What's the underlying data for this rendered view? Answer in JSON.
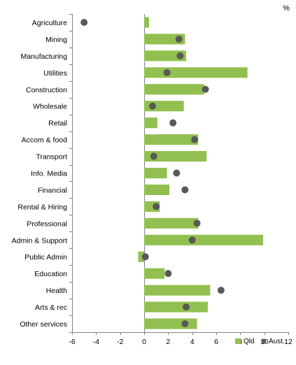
{
  "chart_data": {
    "type": "bar",
    "orientation": "horizontal",
    "unit_label": "%",
    "categories": [
      "Agriculture",
      "Mining",
      "Manufacturing",
      "Utilities",
      "Construction",
      "Wholesale",
      "Retail",
      "Accom & food",
      "Transport",
      "Info. Media",
      "Financial",
      "Rental & Hiring",
      "Professional",
      "Admin & Support",
      "Public Admin",
      "Education",
      "Health",
      "Arts & rec",
      "Other services"
    ],
    "series": [
      {
        "name": "Qld",
        "type": "bar",
        "color": "#92c050",
        "values": [
          0.4,
          3.4,
          3.5,
          8.6,
          5.0,
          3.3,
          1.1,
          4.5,
          5.2,
          1.9,
          2.1,
          1.3,
          4.5,
          9.9,
          -0.5,
          1.7,
          5.5,
          5.3,
          4.4
        ]
      },
      {
        "name": "Aust.",
        "type": "marker",
        "color": "#595959",
        "values": [
          -5.0,
          2.9,
          3.0,
          1.9,
          5.1,
          0.7,
          2.4,
          4.2,
          0.8,
          2.7,
          3.4,
          1.0,
          4.4,
          4.0,
          0.1,
          2.0,
          6.4,
          3.5,
          3.4
        ]
      }
    ],
    "x_ticks": [
      -6,
      -4,
      -2,
      0,
      2,
      4,
      6,
      8,
      10,
      12
    ],
    "x_tick_labels": [
      "-6",
      "-4",
      "-2",
      "0",
      "2",
      "4",
      "6",
      "8",
      "10",
      "12"
    ],
    "xlim": [
      -6,
      12
    ],
    "grid": false,
    "legend_position": "bottom-right"
  }
}
